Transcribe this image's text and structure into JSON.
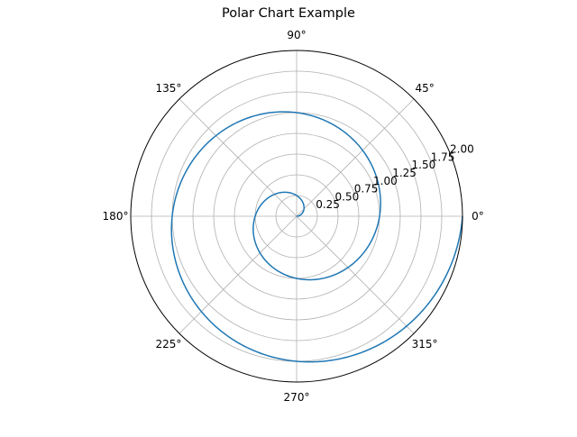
{
  "chart_data": {
    "type": "line",
    "projection": "polar",
    "title": "Polar Chart Example",
    "theta_tick_labels": [
      "0°",
      "45°",
      "90°",
      "135°",
      "180°",
      "225°",
      "270°",
      "315°"
    ],
    "theta_ticks_deg": [
      0,
      45,
      90,
      135,
      180,
      225,
      270,
      315
    ],
    "r_ticks": [
      0.25,
      0.5,
      0.75,
      1.0,
      1.25,
      1.5,
      1.75,
      2.0
    ],
    "r_tick_labels": [
      "0.25",
      "0.50",
      "0.75",
      "1.00",
      "1.25",
      "1.50",
      "1.75",
      "2.00"
    ],
    "r_lim": [
      0,
      2.0
    ],
    "r_label_angle_deg": 22.5,
    "grid": true,
    "series": [
      {
        "color": "#1f77b4",
        "r_formula": "r = theta / (2*pi)",
        "theta_range_rad": [
          0,
          12.566
        ],
        "r": [
          0.0,
          0.125,
          0.25,
          0.375,
          0.5,
          0.625,
          0.75,
          0.875,
          1.0,
          1.125,
          1.25,
          1.375,
          1.5,
          1.625,
          1.75,
          1.875,
          2.0
        ],
        "theta_deg": [
          0,
          45,
          90,
          135,
          180,
          225,
          270,
          315,
          360,
          405,
          450,
          495,
          540,
          585,
          630,
          675,
          720
        ]
      }
    ]
  }
}
